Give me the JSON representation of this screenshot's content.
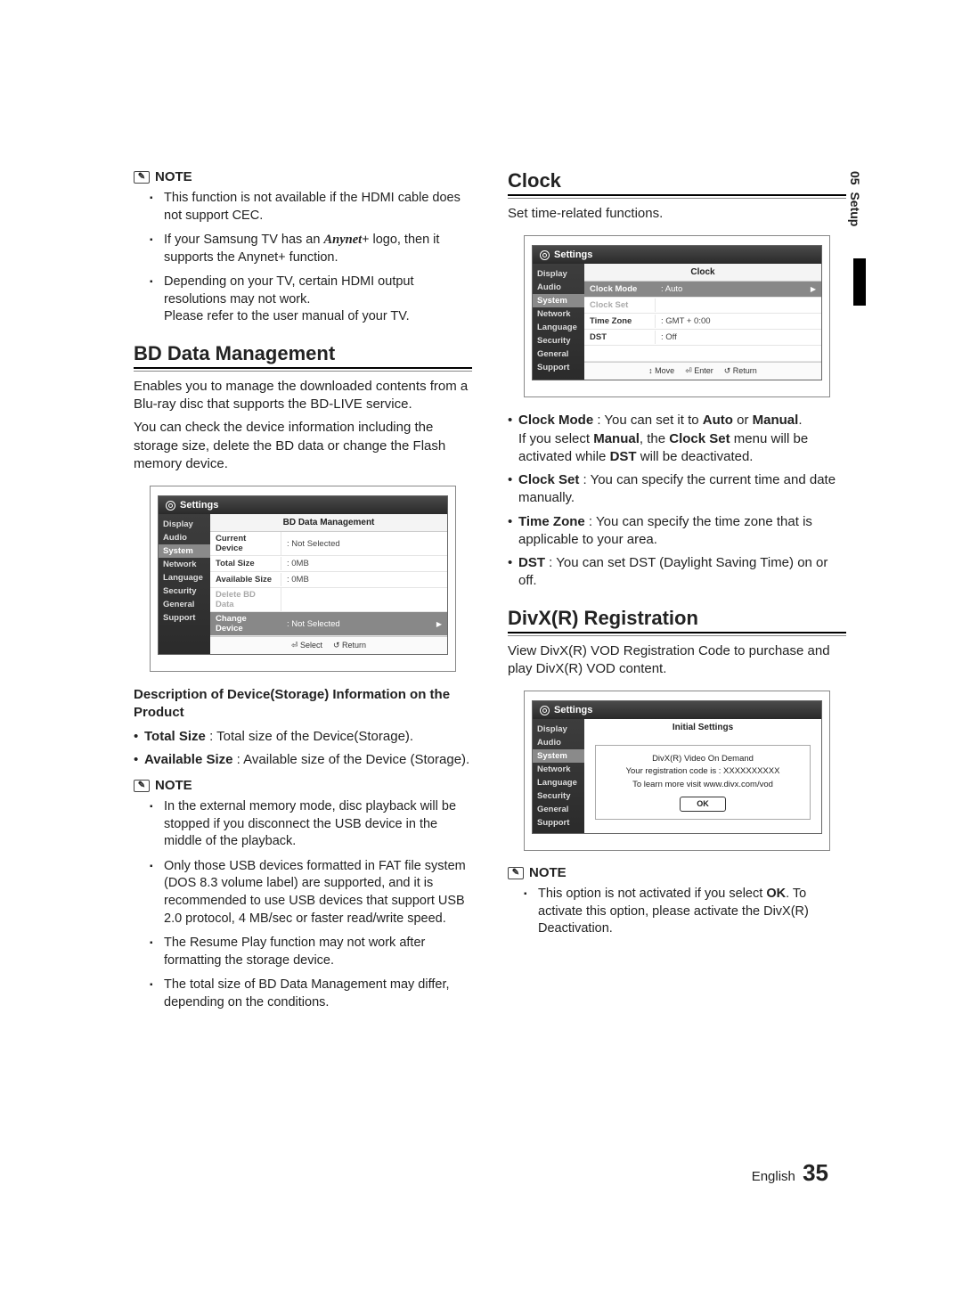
{
  "side_tab": {
    "num": "05",
    "label": "Setup"
  },
  "footer": {
    "lang": "English",
    "page": "35"
  },
  "left": {
    "note1_label": "NOTE",
    "note1_items": [
      "This function is not available if the HDMI cable does not support CEC.",
      "If your Samsung TV has an __ANYNET__ logo, then it supports the Anynet+ function.",
      "Depending on your TV, certain HDMI output resolutions may not work.\nPlease refer to the user manual of your TV."
    ],
    "anynet_logo": "Anynet+",
    "bd_heading": "BD Data Management",
    "bd_p1": "Enables you to manage the downloaded contents from a Blu-ray disc that supports the BD-LIVE service.",
    "bd_p2": "You can check the device information including the storage size, delete the BD data or change the Flash memory device.",
    "shot1": {
      "settings": "Settings",
      "side": [
        "Display",
        "Audio",
        "System",
        "Network",
        "Language",
        "Security",
        "General",
        "Support"
      ],
      "side_sel_index": 2,
      "title": "BD Data Management",
      "rows": [
        {
          "k": "Current Device",
          "v": ": Not Selected",
          "dim": false,
          "hl": false
        },
        {
          "k": "Total Size",
          "v": ": 0MB",
          "dim": false,
          "hl": false
        },
        {
          "k": "Available Size",
          "v": ": 0MB",
          "dim": false,
          "hl": false
        },
        {
          "k": "Delete BD Data",
          "v": "",
          "dim": true,
          "hl": false
        },
        {
          "k": "Change Device",
          "v": ": Not Selected",
          "dim": false,
          "hl": true,
          "arrow": true
        }
      ],
      "foot": [
        "⏎ Select",
        "↺ Return"
      ]
    },
    "desc_heading": "Description of Device(Storage) Information on the Product",
    "desc_items": [
      {
        "b": "Total Size",
        "t": " : Total size of the Device(Storage)."
      },
      {
        "b": "Available Size",
        "t": " : Available size of the Device (Storage)."
      }
    ],
    "note2_label": "NOTE",
    "note2_items": [
      "In the external memory mode, disc playback will be stopped if you disconnect the USB device in the middle of the playback.",
      "Only those USB devices formatted in FAT file system (DOS 8.3 volume label) are supported, and it is recommended to use USB devices that support USB 2.0 protocol, 4 MB/sec or faster read/write speed.",
      "The Resume Play function may not work after formatting the storage device.",
      "The total size of BD Data Management may differ, depending on the conditions."
    ]
  },
  "right": {
    "clock_heading": "Clock",
    "clock_p": "Set time-related functions.",
    "shot2": {
      "settings": "Settings",
      "side": [
        "Display",
        "Audio",
        "System",
        "Network",
        "Language",
        "Security",
        "General",
        "Support"
      ],
      "side_sel_index": 2,
      "title": "Clock",
      "rows": [
        {
          "k": "Clock Mode",
          "v": ": Auto",
          "hl": true,
          "arrow": true
        },
        {
          "k": "Clock Set",
          "v": "",
          "dim": true
        },
        {
          "k": "Time Zone",
          "v": ": GMT + 0:00"
        },
        {
          "k": "DST",
          "v": ": Off"
        }
      ],
      "foot": [
        "↕ Move",
        "⏎ Enter",
        "↺ Return"
      ]
    },
    "clock_items": [
      {
        "b": "Clock Mode",
        "t1": " : You can set it to ",
        "b2": "Auto",
        "t2": " or ",
        "b3": "Manual",
        "t3": ".",
        "extra": "If you select __B__Manual__/B__, the __B__Clock Set__/B__ menu will be activated while __B__DST__/B__ will be deactivated."
      },
      {
        "b": "Clock Set",
        "t": " : You can specify the current time and date manually."
      },
      {
        "b": "Time Zone",
        "t": " : You can specify the time zone that is applicable to your area."
      },
      {
        "b": "DST",
        "t": " : You can set DST (Daylight Saving Time) on or off."
      }
    ],
    "divx_heading": "DivX(R) Registration",
    "divx_p": "View DivX(R) VOD Registration Code to purchase and play DivX(R) VOD content.",
    "shot3": {
      "settings": "Settings",
      "side": [
        "Display",
        "Audio",
        "System",
        "Network",
        "Language",
        "Security",
        "General",
        "Support"
      ],
      "side_sel_index": 2,
      "title": "Initial Settings",
      "box_title": "DivX(R) Video On Demand",
      "box_l1": "Your registration code is : XXXXXXXXXX",
      "box_l2": "To learn more visit www.divx.com/vod",
      "ok": "OK"
    },
    "note3_label": "NOTE",
    "note3_item_pre": "This option is not activated if you select ",
    "note3_item_b": "OK",
    "note3_item_post": ". To activate this option, please activate the DivX(R) Deactivation."
  }
}
